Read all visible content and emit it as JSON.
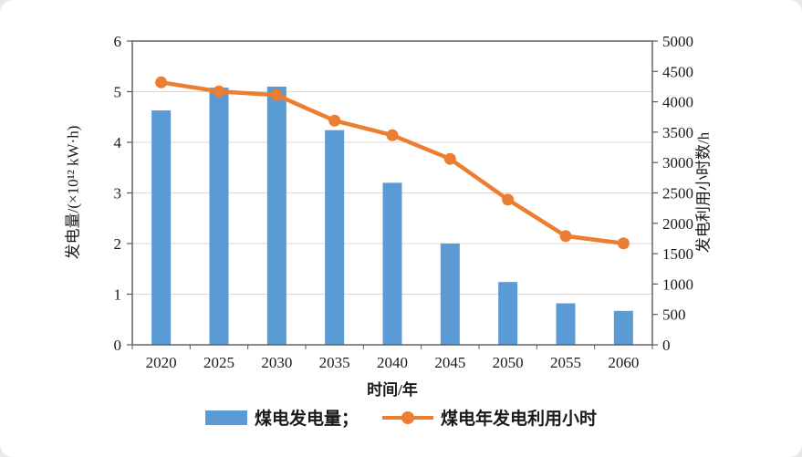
{
  "chart_data": {
    "type": "bar+line",
    "title": "",
    "xlabel": "时间/年",
    "ylabel_left": "发电量/(×10¹² kW·h)",
    "ylabel_right": "发电利用小时数/h",
    "categories": [
      "2020",
      "2025",
      "2030",
      "2035",
      "2040",
      "2045",
      "2050",
      "2055",
      "2060"
    ],
    "series": [
      {
        "name": "煤电发电量",
        "legend_label": "煤电发电量；",
        "type": "bar",
        "axis": "left",
        "color": "#5b9bd5",
        "values": [
          4.63,
          5.08,
          5.1,
          4.24,
          3.2,
          2.0,
          1.24,
          0.82,
          0.67
        ]
      },
      {
        "name": "煤电年发电利用小时",
        "legend_label": "煤电年发电利用小时",
        "type": "line",
        "axis": "right",
        "color": "#ed7d31",
        "values": [
          4320,
          4170,
          4110,
          3690,
          3450,
          3060,
          2390,
          1790,
          1670
        ]
      }
    ],
    "ylim_left": [
      0,
      6
    ],
    "ylim_right": [
      0,
      5000
    ],
    "left_ticks": [
      0,
      1,
      2,
      3,
      4,
      5,
      6
    ],
    "right_ticks": [
      0,
      500,
      1000,
      1500,
      2000,
      2500,
      3000,
      3500,
      4000,
      4500,
      5000
    ],
    "grid_values_left": [
      1,
      2,
      3,
      4,
      5
    ],
    "grid": "horizontal",
    "legend_position": "bottom-center",
    "colors": {
      "frame": "#595959",
      "gridline": "#d9d9d9",
      "tick_text": "#1a1a1a"
    }
  }
}
